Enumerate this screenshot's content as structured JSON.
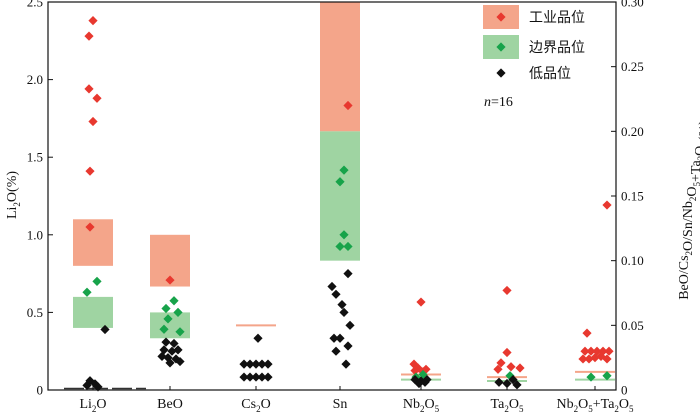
{
  "chart_data": {
    "type": "scatter",
    "ylabel_left": "Li2O(%)",
    "ylabel_right": "BeO/Cs2O/Sn/Nb2O5+Ta2O5(%)",
    "ylim_left": [
      0,
      2.5
    ],
    "ylim_right": [
      0,
      0.3
    ],
    "yticks_left": [
      "0",
      "0.5",
      "1.0",
      "1.5",
      "2.0",
      "2.5"
    ],
    "yticks_right": [
      "0",
      "0.05",
      "0.10",
      "0.15",
      "0.20",
      "0.25",
      "0.30"
    ],
    "categories": [
      {
        "label": "Li2O",
        "base": "Li",
        "subs": [
          "2"
        ],
        "after": [
          "O"
        ]
      },
      {
        "label": "BeO",
        "base": "BeO",
        "subs": [],
        "after": []
      },
      {
        "label": "Cs2O",
        "base": "Cs",
        "subs": [
          "2"
        ],
        "after": [
          "O"
        ]
      },
      {
        "label": "Sn",
        "base": "Sn",
        "subs": [],
        "after": []
      },
      {
        "label": "Nb2O5",
        "base": "Nb",
        "subs": [
          "2",
          "5"
        ],
        "after": [
          "O",
          ""
        ]
      },
      {
        "label": "Ta2O5",
        "base": "Ta",
        "subs": [
          "2",
          "5"
        ],
        "after": [
          "O",
          ""
        ]
      },
      {
        "label": "Nb2O5+Ta2O5",
        "base": "Nb",
        "subs": [
          "2",
          "5",
          "2",
          "5"
        ],
        "after": [
          "O",
          "+Ta",
          "O",
          ""
        ]
      }
    ],
    "legend": {
      "position": "top-right",
      "items": [
        {
          "label": "工业品位",
          "color": "#f4a58a",
          "marker": "#e8382f"
        },
        {
          "label": "边界品位",
          "color": "#9fd4a2",
          "marker": "#17a34a"
        },
        {
          "label": "低品位",
          "color": null,
          "marker": "#111111"
        }
      ]
    },
    "annotation": {
      "italic": "n",
      "rest": "=16"
    },
    "colors": {
      "industrial": "#f4a58a",
      "boundary": "#9fd4a2",
      "industrial_marker": "#e8382f",
      "boundary_marker": "#17a34a",
      "low_marker": "#111111"
    },
    "grade_bands": [
      {
        "category": 0,
        "axis": "left",
        "industrial": [
          0.8,
          1.1
        ],
        "boundary": [
          0.4,
          0.6
        ]
      },
      {
        "category": 1,
        "axis": "right",
        "industrial": [
          0.08,
          0.12
        ],
        "boundary": [
          0.04,
          0.06
        ]
      },
      {
        "category": 2,
        "axis": "right",
        "line": 0.05
      },
      {
        "category": 3,
        "axis": "right",
        "industrial": [
          0.2,
          0.3
        ],
        "boundary": [
          0.1,
          0.2
        ]
      },
      {
        "category": 4,
        "axis": "right",
        "line": 0.012,
        "line2": 0.008
      },
      {
        "category": 5,
        "axis": "right",
        "line": 0.01,
        "line2": 0.007
      },
      {
        "category": 6,
        "axis": "right",
        "line": 0.014,
        "line2": 0.008
      }
    ],
    "series": [
      {
        "name": "工业品位",
        "points": [
          {
            "c": 0,
            "dx": 0,
            "y": 2.38
          },
          {
            "c": 0,
            "dx": -4,
            "y": 2.28
          },
          {
            "c": 0,
            "dx": -4,
            "y": 1.94
          },
          {
            "c": 0,
            "dx": 4,
            "y": 1.88
          },
          {
            "c": 0,
            "dx": 0,
            "y": 1.73
          },
          {
            "c": 0,
            "dx": -3,
            "y": 1.41
          },
          {
            "c": 0,
            "dx": -3,
            "y": 1.05
          },
          {
            "c": 1,
            "dx": 0,
            "y": 0.085
          },
          {
            "c": 3,
            "dx": 8,
            "y": 0.22
          },
          {
            "c": 4,
            "dx": 0,
            "y": 0.068
          },
          {
            "c": 4,
            "dx": -7,
            "y": 0.02
          },
          {
            "c": 4,
            "dx": -3,
            "y": 0.017
          },
          {
            "c": 4,
            "dx": 5,
            "y": 0.016
          },
          {
            "c": 4,
            "dx": -6,
            "y": 0.015
          },
          {
            "c": 4,
            "dx": 2,
            "y": 0.014
          },
          {
            "c": 5,
            "dx": 0,
            "y": 0.077
          },
          {
            "c": 5,
            "dx": 0,
            "y": 0.029
          },
          {
            "c": 5,
            "dx": -6,
            "y": 0.021
          },
          {
            "c": 5,
            "dx": 4,
            "y": 0.018
          },
          {
            "c": 5,
            "dx": -9,
            "y": 0.016
          },
          {
            "c": 5,
            "dx": 13,
            "y": 0.017
          },
          {
            "c": 6,
            "dx": 12,
            "y": 0.143
          },
          {
            "c": 6,
            "dx": -8,
            "y": 0.044
          },
          {
            "c": 6,
            "dx": -10,
            "y": 0.03
          },
          {
            "c": 6,
            "dx": -4,
            "y": 0.03
          },
          {
            "c": 6,
            "dx": 2,
            "y": 0.03
          },
          {
            "c": 6,
            "dx": 8,
            "y": 0.03
          },
          {
            "c": 6,
            "dx": 14,
            "y": 0.03
          },
          {
            "c": 6,
            "dx": -12,
            "y": 0.024
          },
          {
            "c": 6,
            "dx": -6,
            "y": 0.024
          },
          {
            "c": 6,
            "dx": 0,
            "y": 0.025
          },
          {
            "c": 6,
            "dx": 6,
            "y": 0.026
          },
          {
            "c": 6,
            "dx": 12,
            "y": 0.024
          }
        ]
      },
      {
        "name": "边界品位",
        "points": [
          {
            "c": 0,
            "dx": 4,
            "y": 0.7
          },
          {
            "c": 0,
            "dx": -6,
            "y": 0.63
          },
          {
            "c": 1,
            "dx": 4,
            "y": 0.069
          },
          {
            "c": 1,
            "dx": -4,
            "y": 0.063
          },
          {
            "c": 1,
            "dx": 8,
            "y": 0.06
          },
          {
            "c": 1,
            "dx": -2,
            "y": 0.055
          },
          {
            "c": 1,
            "dx": -6,
            "y": 0.047
          },
          {
            "c": 1,
            "dx": 10,
            "y": 0.045
          },
          {
            "c": 3,
            "dx": 4,
            "y": 0.17
          },
          {
            "c": 3,
            "dx": 0,
            "y": 0.161
          },
          {
            "c": 3,
            "dx": 4,
            "y": 0.12
          },
          {
            "c": 3,
            "dx": 0,
            "y": 0.111
          },
          {
            "c": 3,
            "dx": 8,
            "y": 0.111
          },
          {
            "c": 4,
            "dx": 2,
            "y": 0.012
          },
          {
            "c": 4,
            "dx": -5,
            "y": 0.01
          },
          {
            "c": 5,
            "dx": 3,
            "y": 0.011
          },
          {
            "c": 6,
            "dx": -4,
            "y": 0.01
          },
          {
            "c": 6,
            "dx": 12,
            "y": 0.011
          }
        ]
      },
      {
        "name": "低品位",
        "points": [
          {
            "c": 0,
            "dx": 12,
            "y": 0.39
          },
          {
            "c": 0,
            "dx": -3,
            "y": 0.06
          },
          {
            "c": 0,
            "dx": 2,
            "y": 0.04
          },
          {
            "c": 0,
            "dx": -6,
            "y": 0.03
          },
          {
            "c": 0,
            "dx": 5,
            "y": 0.02
          },
          {
            "c": 1,
            "dx": -4,
            "y": 0.037
          },
          {
            "c": 1,
            "dx": 4,
            "y": 0.036
          },
          {
            "c": 1,
            "dx": -6,
            "y": 0.031
          },
          {
            "c": 1,
            "dx": 2,
            "y": 0.03
          },
          {
            "c": 1,
            "dx": 8,
            "y": 0.031
          },
          {
            "c": 1,
            "dx": -8,
            "y": 0.026
          },
          {
            "c": 1,
            "dx": -2,
            "y": 0.025
          },
          {
            "c": 1,
            "dx": 6,
            "y": 0.024
          },
          {
            "c": 1,
            "dx": 0,
            "y": 0.021
          },
          {
            "c": 1,
            "dx": 10,
            "y": 0.022
          },
          {
            "c": 2,
            "dx": 2,
            "y": 0.04
          },
          {
            "c": 2,
            "dx": -12,
            "y": 0.02
          },
          {
            "c": 2,
            "dx": -6,
            "y": 0.02
          },
          {
            "c": 2,
            "dx": 0,
            "y": 0.02
          },
          {
            "c": 2,
            "dx": 6,
            "y": 0.02
          },
          {
            "c": 2,
            "dx": 12,
            "y": 0.02
          },
          {
            "c": 2,
            "dx": -12,
            "y": 0.01
          },
          {
            "c": 2,
            "dx": -6,
            "y": 0.01
          },
          {
            "c": 2,
            "dx": 0,
            "y": 0.01
          },
          {
            "c": 2,
            "dx": 6,
            "y": 0.01
          },
          {
            "c": 2,
            "dx": 12,
            "y": 0.01
          },
          {
            "c": 3,
            "dx": 8,
            "y": 0.09
          },
          {
            "c": 3,
            "dx": -8,
            "y": 0.08
          },
          {
            "c": 3,
            "dx": -4,
            "y": 0.074
          },
          {
            "c": 3,
            "dx": 2,
            "y": 0.066
          },
          {
            "c": 3,
            "dx": 10,
            "y": 0.05
          },
          {
            "c": 3,
            "dx": 4,
            "y": 0.06
          },
          {
            "c": 3,
            "dx": -6,
            "y": 0.04
          },
          {
            "c": 3,
            "dx": 0,
            "y": 0.04
          },
          {
            "c": 3,
            "dx": 8,
            "y": 0.034
          },
          {
            "c": 3,
            "dx": -4,
            "y": 0.03
          },
          {
            "c": 3,
            "dx": 6,
            "y": 0.02
          },
          {
            "c": 4,
            "dx": -6,
            "y": 0.008
          },
          {
            "c": 4,
            "dx": 0,
            "y": 0.007
          },
          {
            "c": 4,
            "dx": 6,
            "y": 0.008
          },
          {
            "c": 4,
            "dx": -2,
            "y": 0.005
          },
          {
            "c": 4,
            "dx": 4,
            "y": 0.006
          },
          {
            "c": 5,
            "dx": -8,
            "y": 0.006
          },
          {
            "c": 5,
            "dx": 0,
            "y": 0.005
          },
          {
            "c": 5,
            "dx": 6,
            "y": 0.008
          },
          {
            "c": 5,
            "dx": 10,
            "y": 0.004
          }
        ]
      }
    ]
  }
}
